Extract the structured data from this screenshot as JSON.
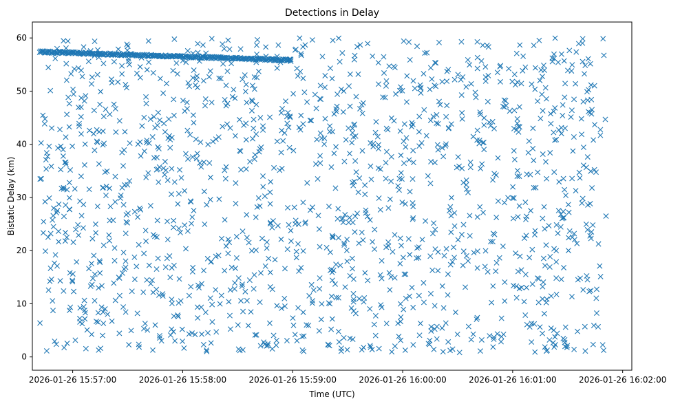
{
  "chart_data": {
    "type": "scatter",
    "title": "Detections in Delay",
    "xlabel": "Time (UTC)",
    "ylabel": "Bistatic Delay (km)",
    "marker": "x",
    "color": "#1f77b4",
    "grid": false,
    "x_axis": {
      "kind": "datetime",
      "range": [
        "2026-01-26 15:56:38",
        "2026-01-26 16:02:05"
      ],
      "ticks": [
        "2026-01-26 15:57:00",
        "2026-01-26 15:58:00",
        "2026-01-26 15:59:00",
        "2026-01-26 16:00:00",
        "2026-01-26 16:01:00",
        "2026-01-26 16:02:00"
      ]
    },
    "y_axis": {
      "range": [
        -2.5,
        63
      ],
      "ticks": [
        0,
        10,
        20,
        30,
        40,
        50,
        60
      ]
    },
    "data_span": {
      "start": "2026-01-26 15:56:42",
      "end": "2026-01-26 16:01:51",
      "delay_min": 0.8,
      "delay_max": 60
    },
    "track": {
      "start_time": "2026-01-26 15:56:42",
      "end_time": "2026-01-26 15:58:59",
      "start_delay": 57.4,
      "end_delay": 55.8
    }
  }
}
